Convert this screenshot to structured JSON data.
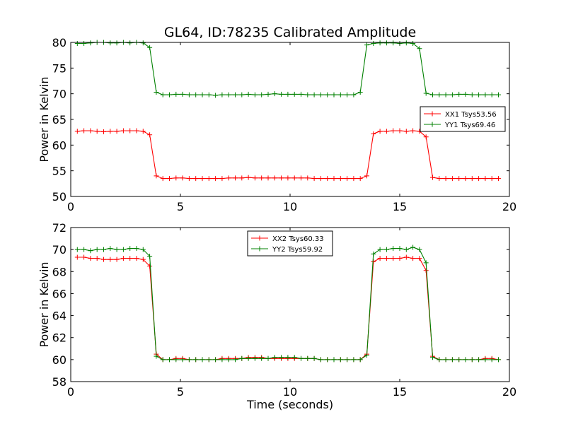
{
  "chart_data": [
    {
      "type": "line",
      "title": "GL64, ID:78235 Calibrated Amplitude",
      "xlabel": "",
      "ylabel": "Power in Kelvin",
      "xlim": [
        0,
        20
      ],
      "ylim": [
        50,
        80
      ],
      "xticks": [
        0,
        5,
        10,
        15,
        20
      ],
      "yticks": [
        50,
        55,
        60,
        65,
        70,
        75,
        80
      ],
      "grid": false,
      "legend_position": "center-right",
      "x": [
        0.3,
        0.6,
        0.9,
        1.2,
        1.5,
        1.8,
        2.1,
        2.4,
        2.7,
        3.0,
        3.3,
        3.6,
        3.9,
        4.2,
        4.5,
        4.8,
        5.1,
        5.4,
        5.7,
        6.0,
        6.3,
        6.6,
        6.9,
        7.2,
        7.5,
        7.8,
        8.1,
        8.4,
        8.7,
        9.0,
        9.3,
        9.6,
        9.9,
        10.2,
        10.5,
        10.8,
        11.1,
        11.4,
        11.7,
        12.0,
        12.3,
        12.6,
        12.9,
        13.2,
        13.5,
        13.8,
        14.1,
        14.4,
        14.7,
        15.0,
        15.3,
        15.6,
        15.9,
        16.2,
        16.5,
        16.8,
        17.1,
        17.4,
        17.7,
        18.0,
        18.3,
        18.6,
        18.9,
        19.2,
        19.5
      ],
      "series": [
        {
          "name": "XX1 Tsys53.56",
          "color": "#ff0000",
          "values": [
            62.7,
            62.8,
            62.8,
            62.7,
            62.6,
            62.7,
            62.7,
            62.8,
            62.8,
            62.8,
            62.7,
            62.0,
            54.0,
            53.5,
            53.5,
            53.6,
            53.6,
            53.5,
            53.5,
            53.5,
            53.5,
            53.5,
            53.5,
            53.6,
            53.6,
            53.6,
            53.7,
            53.6,
            53.6,
            53.6,
            53.6,
            53.6,
            53.6,
            53.6,
            53.6,
            53.6,
            53.5,
            53.5,
            53.5,
            53.5,
            53.5,
            53.5,
            53.5,
            53.5,
            54.0,
            62.2,
            62.7,
            62.7,
            62.8,
            62.8,
            62.7,
            62.8,
            62.7,
            61.6,
            53.7,
            53.5,
            53.5,
            53.5,
            53.5,
            53.5,
            53.5,
            53.5,
            53.5,
            53.5,
            53.5
          ]
        },
        {
          "name": "YY1 Tsys69.46",
          "color": "#008000",
          "values": [
            79.8,
            79.8,
            79.9,
            80.0,
            80.0,
            79.9,
            79.9,
            80.0,
            79.9,
            80.0,
            79.9,
            79.0,
            70.3,
            69.8,
            69.8,
            69.9,
            69.9,
            69.8,
            69.8,
            69.8,
            69.8,
            69.7,
            69.8,
            69.8,
            69.8,
            69.8,
            69.9,
            69.8,
            69.8,
            69.9,
            70.0,
            69.9,
            69.9,
            69.9,
            69.9,
            69.8,
            69.8,
            69.8,
            69.8,
            69.8,
            69.8,
            69.8,
            69.8,
            70.3,
            79.5,
            79.8,
            79.9,
            79.9,
            79.9,
            79.8,
            79.9,
            79.8,
            78.8,
            70.1,
            69.8,
            69.8,
            69.8,
            69.8,
            69.9,
            69.9,
            69.8,
            69.8,
            69.8,
            69.8,
            69.8
          ]
        }
      ]
    },
    {
      "type": "line",
      "title": "",
      "xlabel": "Time (seconds)",
      "ylabel": "Power in Kelvin",
      "xlim": [
        0,
        20
      ],
      "ylim": [
        58,
        72
      ],
      "xticks": [
        0,
        5,
        10,
        15,
        20
      ],
      "yticks": [
        58,
        60,
        62,
        64,
        66,
        68,
        70,
        72
      ],
      "grid": false,
      "legend_position": "upper-center",
      "x": [
        0.3,
        0.6,
        0.9,
        1.2,
        1.5,
        1.8,
        2.1,
        2.4,
        2.7,
        3.0,
        3.3,
        3.6,
        3.9,
        4.2,
        4.5,
        4.8,
        5.1,
        5.4,
        5.7,
        6.0,
        6.3,
        6.6,
        6.9,
        7.2,
        7.5,
        7.8,
        8.1,
        8.4,
        8.7,
        9.0,
        9.3,
        9.6,
        9.9,
        10.2,
        10.5,
        10.8,
        11.1,
        11.4,
        11.7,
        12.0,
        12.3,
        12.6,
        12.9,
        13.2,
        13.5,
        13.8,
        14.1,
        14.4,
        14.7,
        15.0,
        15.3,
        15.6,
        15.9,
        16.2,
        16.5,
        16.8,
        17.1,
        17.4,
        17.7,
        18.0,
        18.3,
        18.6,
        18.9,
        19.2,
        19.5
      ],
      "series": [
        {
          "name": "XX2 Tsys60.33",
          "color": "#ff0000",
          "values": [
            69.3,
            69.3,
            69.2,
            69.2,
            69.1,
            69.1,
            69.1,
            69.2,
            69.2,
            69.2,
            69.1,
            68.5,
            60.5,
            60.0,
            60.0,
            60.1,
            60.1,
            60.0,
            60.0,
            60.0,
            60.0,
            60.0,
            60.1,
            60.1,
            60.1,
            60.1,
            60.2,
            60.2,
            60.2,
            60.1,
            60.1,
            60.1,
            60.1,
            60.1,
            60.1,
            60.1,
            60.1,
            60.0,
            60.0,
            60.0,
            60.0,
            60.0,
            60.0,
            60.0,
            60.5,
            68.9,
            69.2,
            69.2,
            69.2,
            69.2,
            69.3,
            69.2,
            69.2,
            68.1,
            60.3,
            60.0,
            60.0,
            60.0,
            60.0,
            60.0,
            60.0,
            60.0,
            60.1,
            60.1,
            60.0
          ]
        },
        {
          "name": "YY2 Tsys59.92",
          "color": "#008000",
          "values": [
            70.0,
            70.0,
            69.9,
            70.0,
            70.0,
            70.1,
            70.0,
            70.0,
            70.1,
            70.1,
            70.0,
            69.4,
            60.3,
            60.0,
            60.0,
            60.0,
            60.0,
            60.0,
            60.0,
            60.0,
            60.0,
            60.0,
            60.0,
            60.0,
            60.0,
            60.1,
            60.1,
            60.1,
            60.1,
            60.1,
            60.2,
            60.2,
            60.2,
            60.2,
            60.1,
            60.1,
            60.1,
            60.0,
            60.0,
            60.0,
            60.0,
            60.0,
            60.0,
            60.0,
            60.4,
            69.6,
            70.0,
            70.0,
            70.1,
            70.1,
            70.0,
            70.2,
            70.0,
            68.8,
            60.2,
            60.0,
            60.0,
            60.0,
            60.0,
            60.0,
            60.0,
            60.0,
            60.0,
            60.0,
            60.0
          ]
        }
      ]
    }
  ]
}
